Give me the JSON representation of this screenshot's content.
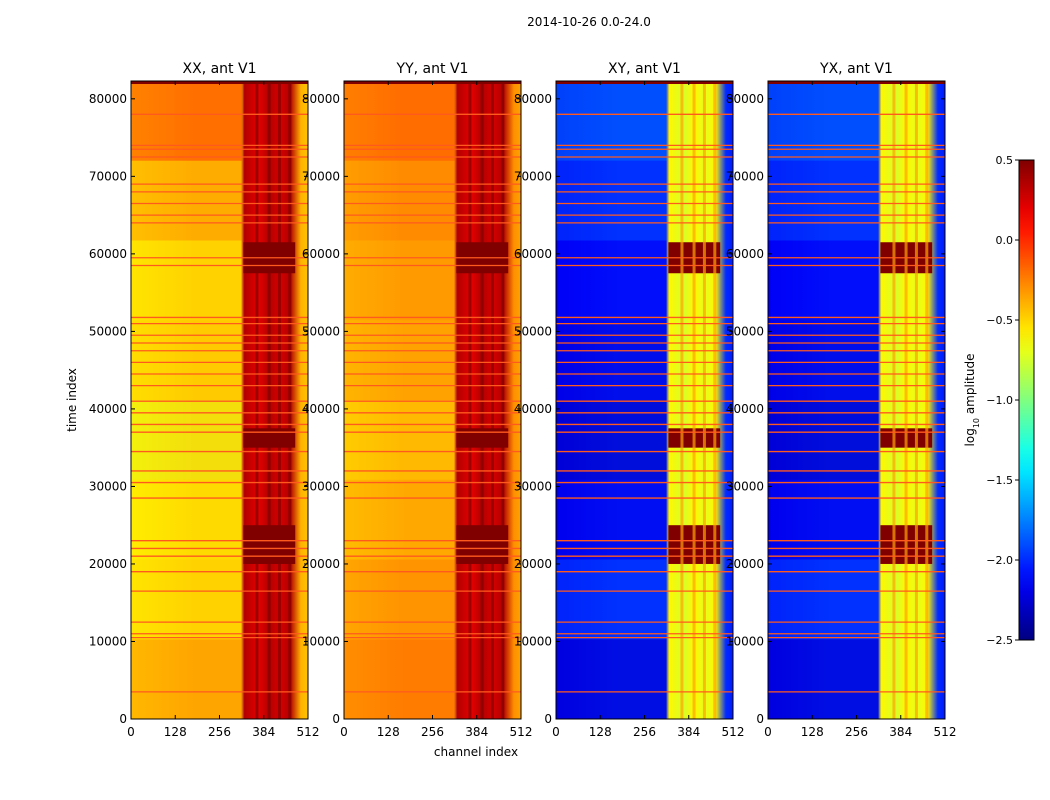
{
  "chart_data": {
    "type": "heatmap",
    "suptitle": "2014-10-26 0.0-24.0",
    "xlabel": "channel index",
    "ylabel": "time index",
    "x_ticks": [
      0,
      128,
      256,
      384,
      512
    ],
    "y_ticks": [
      0,
      10000,
      20000,
      30000,
      40000,
      50000,
      60000,
      70000,
      80000
    ],
    "xlim": [
      0,
      512
    ],
    "ylim": [
      0,
      82300
    ],
    "panels": [
      {
        "title": "XX, ant V1",
        "base": -0.45,
        "band": 0.35,
        "rows": [
          -0.25,
          -0.55,
          -0.6,
          -0.7,
          -0.5,
          -0.55,
          -0.3,
          0.1
        ],
        "strong": 0.6
      },
      {
        "title": "YY, ant V1",
        "base": -0.35,
        "band": 0.35,
        "rows": [
          -0.1,
          -0.25,
          -0.4,
          -0.5,
          -0.35,
          -0.3,
          -0.2,
          0.0
        ],
        "strong": 0.6
      },
      {
        "title": "XY, ant V1",
        "base": -2.05,
        "band": -0.6,
        "rows": [
          -2.3,
          -1.9,
          -2.2,
          -2.35,
          -2.25,
          -2.15,
          -1.9,
          -1.7
        ],
        "strong": 0.5
      },
      {
        "title": "YX, ant V1",
        "base": -2.05,
        "band": -0.6,
        "rows": [
          -2.3,
          -1.9,
          -2.2,
          -2.35,
          -2.25,
          -2.15,
          -1.9,
          -1.7
        ],
        "strong": 0.5
      }
    ],
    "strong_bands": [
      [
        20000,
        25000
      ],
      [
        35000,
        37500
      ],
      [
        57500,
        61500
      ]
    ],
    "flag_lines": [
      3500,
      10500,
      11000,
      12500,
      16500,
      19000,
      21000,
      22000,
      23000,
      28500,
      30500,
      32000,
      34500,
      37000,
      38000,
      39500,
      41000,
      43000,
      44500,
      46000,
      47500,
      48500,
      49500,
      51000,
      51800,
      58500,
      59500,
      64000,
      65000,
      66500,
      68000,
      69000,
      72500,
      73500,
      74000,
      78000
    ],
    "colorbar": {
      "label_prefix": "log",
      "label_sub": "10",
      "label_suffix": " amplitude",
      "min": -2.5,
      "max": 0.5,
      "ticks": [
        0.5,
        0.0,
        -0.5,
        -1.0,
        -1.5,
        -2.0,
        -2.5
      ],
      "tick_labels": [
        "0.5",
        "0.0",
        "−0.5",
        "−1.0",
        "−1.5",
        "−2.0",
        "−2.5"
      ]
    }
  }
}
